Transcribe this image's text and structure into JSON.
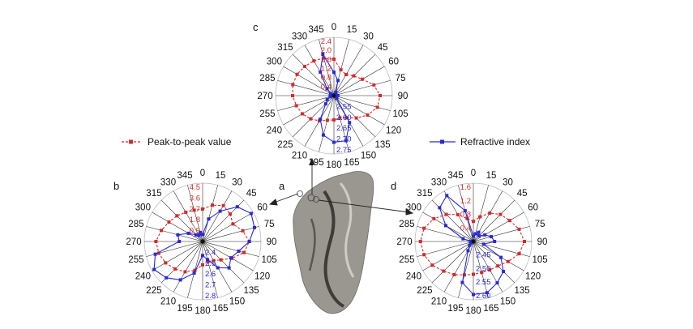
{
  "chart_data": [
    {
      "id": "c",
      "type": "polar-line",
      "label": "c",
      "angles_deg": [
        0,
        15,
        30,
        45,
        60,
        75,
        90,
        105,
        120,
        135,
        150,
        165,
        180,
        195,
        210,
        225,
        240,
        255,
        270,
        285,
        300,
        315,
        330,
        345
      ],
      "angle_labels": [
        "0",
        "15",
        "30",
        "45",
        "60",
        "75",
        "90",
        "105",
        "120",
        "135",
        "150",
        "165",
        "180",
        "195",
        "210",
        "225",
        "240",
        "255",
        "270",
        "285",
        "300",
        "315",
        "330",
        "345"
      ],
      "red_ticks": [
        "0.4",
        "0.8",
        "1.2",
        "1.6",
        "2.0",
        "2.4"
      ],
      "blue_ticks": [
        "2.55",
        "2.60",
        "2.65",
        "2.70",
        "2.75"
      ],
      "series": [
        {
          "name": "Peak-to-peak value",
          "color": "#d42a2a",
          "rlim": [
            0,
            2.4
          ],
          "values": [
            1.5,
            1.1,
            1.0,
            1.15,
            1.35,
            1.7,
            1.9,
            1.85,
            1.6,
            1.3,
            1.05,
            0.95,
            1.0,
            1.05,
            1.2,
            1.35,
            1.5,
            1.6,
            1.7,
            1.75,
            1.75,
            1.7,
            1.65,
            1.6
          ]
        },
        {
          "name": "Refractive index",
          "color": "#2a2ad4",
          "rlim": [
            2.5,
            2.8
          ],
          "values": [
            2.62,
            2.58,
            2.52,
            2.51,
            2.51,
            2.51,
            2.52,
            2.51,
            2.51,
            2.52,
            2.66,
            2.74,
            2.74,
            2.71,
            2.64,
            2.56,
            2.54,
            2.52,
            2.515,
            2.515,
            2.52,
            2.55,
            2.64,
            2.72
          ]
        }
      ]
    },
    {
      "id": "b",
      "type": "polar-line",
      "label": "b",
      "angles_deg": [
        0,
        15,
        30,
        45,
        60,
        75,
        90,
        105,
        120,
        135,
        150,
        165,
        180,
        195,
        210,
        225,
        240,
        255,
        270,
        285,
        300,
        315,
        330,
        345
      ],
      "angle_labels": [
        "0",
        "15",
        "30",
        "45",
        "60",
        "75",
        "90",
        "105",
        "120",
        "135",
        "150",
        "165",
        "180",
        "195",
        "210",
        "225",
        "240",
        "255",
        "270",
        "285",
        "300",
        "315",
        "330",
        "345"
      ],
      "red_ticks": [
        "0.9",
        "1.8",
        "2.7",
        "3.6",
        "4.5"
      ],
      "blue_ticks": [
        "2.4",
        "2.5",
        "2.6",
        "2.7",
        "2.8"
      ],
      "series": [
        {
          "name": "Peak-to-peak value",
          "color": "#d42a2a",
          "rlim": [
            0,
            4.5
          ],
          "values": [
            2.5,
            2.9,
            3.2,
            3.0,
            2.7,
            3.2,
            3.6,
            3.3,
            2.6,
            2.0,
            1.7,
            1.6,
            1.8,
            2.3,
            2.7,
            3.0,
            3.3,
            3.5,
            3.6,
            3.3,
            3.0,
            2.8,
            2.6,
            2.5
          ]
        },
        {
          "name": "Refractive index",
          "color": "#2a2ad4",
          "rlim": [
            2.3,
            2.8
          ],
          "values": [
            2.36,
            2.5,
            2.6,
            2.72,
            2.78,
            2.76,
            2.7,
            2.62,
            2.58,
            2.62,
            2.56,
            2.46,
            2.42,
            2.58,
            2.68,
            2.74,
            2.78,
            2.72,
            2.5,
            2.52,
            2.44,
            2.38,
            2.36,
            2.38
          ]
        }
      ]
    },
    {
      "id": "d",
      "type": "polar-line",
      "label": "d",
      "angles_deg": [
        0,
        15,
        30,
        45,
        60,
        75,
        90,
        105,
        120,
        135,
        150,
        165,
        180,
        195,
        210,
        225,
        240,
        255,
        270,
        285,
        300,
        315,
        330,
        345
      ],
      "angle_labels": [
        "0",
        "15",
        "30",
        "45",
        "60",
        "75",
        "90",
        "105",
        "120",
        "135",
        "150",
        "165",
        "180",
        "195",
        "210",
        "225",
        "240",
        "255",
        "270",
        "285",
        "300",
        "315",
        "330",
        "345"
      ],
      "red_ticks": [
        "0.4",
        "0.8",
        "1.2",
        "1.6"
      ],
      "blue_ticks": [
        "2.45",
        "2.50",
        "2.55",
        "2.60"
      ],
      "series": [
        {
          "name": "Peak-to-peak value",
          "color": "#d42a2a",
          "rlim": [
            0,
            1.6
          ],
          "values": [
            0.55,
            0.7,
            0.9,
            1.05,
            1.15,
            1.3,
            1.4,
            1.3,
            1.1,
            0.95,
            0.9,
            0.88,
            0.9,
            0.95,
            1.05,
            1.15,
            1.3,
            1.4,
            1.45,
            1.4,
            1.25,
            1.05,
            0.85,
            0.65
          ]
        },
        {
          "name": "Refractive index",
          "color": "#2a2ad4",
          "rlim": [
            2.4,
            2.62
          ],
          "values": [
            2.42,
            2.43,
            2.44,
            2.43,
            2.45,
            2.47,
            2.48,
            2.44,
            2.52,
            2.56,
            2.58,
            2.6,
            2.6,
            2.56,
            2.44,
            2.42,
            2.41,
            2.41,
            2.41,
            2.44,
            2.52,
            2.58,
            2.6,
            2.52
          ]
        }
      ]
    }
  ],
  "labels": {
    "a": "a",
    "b": "b",
    "c": "c",
    "d": "d"
  },
  "legend": {
    "red": "Peak-to-peak value",
    "blue": "Refractive index"
  }
}
